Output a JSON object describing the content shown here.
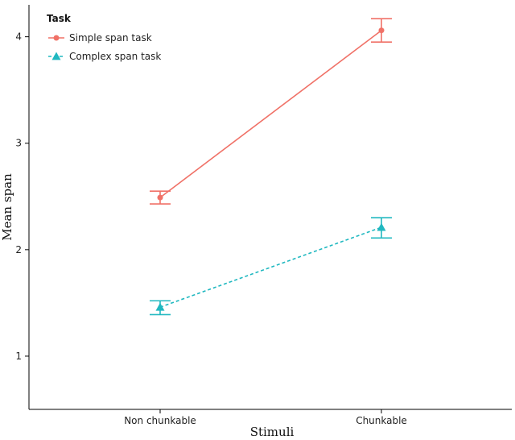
{
  "chart_data": {
    "type": "line",
    "categories": [
      "Non chunkable",
      "Chunkable"
    ],
    "xlabel": "Stimuli",
    "ylabel": "Mean span",
    "ylim": [
      0.5,
      4.3
    ],
    "yticks": [
      1,
      2,
      3,
      4
    ],
    "grid": false,
    "legend": {
      "title": "Task",
      "placement": "top-left"
    },
    "series": [
      {
        "name": "Simple span task",
        "color": "#f07167",
        "marker": "circle",
        "dash": "solid",
        "values": [
          2.49,
          4.06
        ],
        "error_low": [
          2.43,
          3.95
        ],
        "error_high": [
          2.55,
          4.17
        ]
      },
      {
        "name": "Complex span task",
        "color": "#20b8c0",
        "marker": "triangle",
        "dash": "dashed",
        "values": [
          1.46,
          2.21
        ],
        "error_low": [
          1.39,
          2.11
        ],
        "error_high": [
          1.52,
          2.3
        ]
      }
    ]
  }
}
